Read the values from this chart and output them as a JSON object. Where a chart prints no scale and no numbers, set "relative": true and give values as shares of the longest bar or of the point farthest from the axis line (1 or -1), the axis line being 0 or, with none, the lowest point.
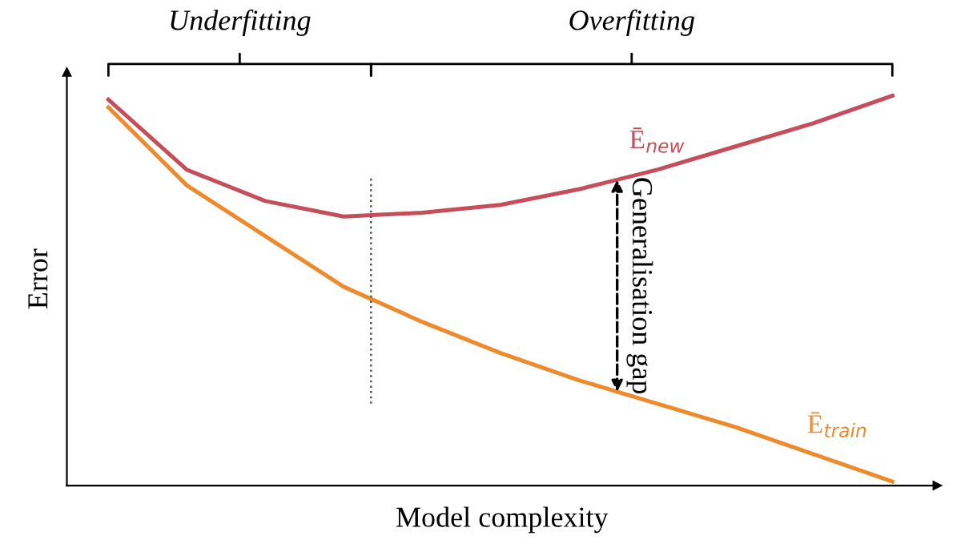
{
  "chart_data": {
    "type": "line",
    "relative": true,
    "xlabel": "Model complexity",
    "ylabel": "Error",
    "categories": [
      null,
      null,
      null,
      null,
      null,
      null,
      null,
      null,
      null,
      null,
      null
    ],
    "series": [
      {
        "name": "Ē$_{new}$",
        "color": "#c44e5a",
        "values": [
          0.99,
          0.81,
          0.73,
          0.69,
          0.7,
          0.72,
          0.76,
          0.81,
          0.87,
          0.93,
          1.0
        ]
      },
      {
        "name": "Ē$_{train}$",
        "color": "#ee8a2c",
        "values": [
          0.97,
          0.77,
          0.64,
          0.51,
          0.42,
          0.34,
          0.27,
          0.21,
          0.15,
          0.08,
          0.01
        ]
      }
    ],
    "annotations": [
      "Underfitting",
      "Overfitting",
      "Generalisation gap"
    ]
  }
}
